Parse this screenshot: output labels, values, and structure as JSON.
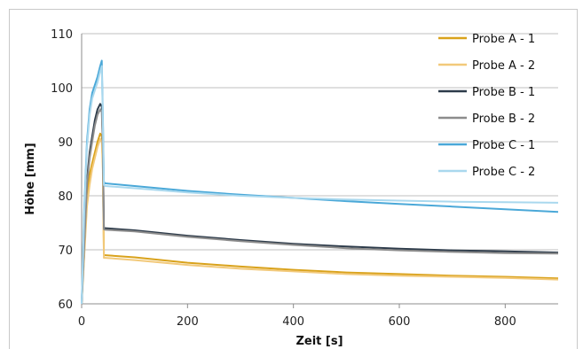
{
  "chart_data": {
    "type": "line",
    "title": "",
    "xlabel": "Zeit [s]",
    "ylabel": "Höhe [mm]",
    "xlim": [
      0,
      900
    ],
    "ylim": [
      60,
      110
    ],
    "xticks": [
      0,
      200,
      400,
      600,
      800
    ],
    "yticks": [
      60,
      70,
      80,
      90,
      100,
      110
    ],
    "grid": "horizontal",
    "legend_position": "right",
    "series": [
      {
        "name": "Probe A - 1",
        "color": "#d9a21b",
        "x": [
          0,
          5,
          10,
          15,
          20,
          25,
          30,
          35,
          38,
          40,
          42,
          45,
          100,
          200,
          300,
          400,
          500,
          600,
          700,
          800,
          900
        ],
        "y": [
          60,
          70,
          80,
          84,
          86,
          88,
          90,
          91.5,
          91,
          86,
          69,
          69,
          68.6,
          67.6,
          66.9,
          66.3,
          65.8,
          65.5,
          65.2,
          65,
          64.7
        ]
      },
      {
        "name": "Probe A - 2",
        "color": "#f2c97a",
        "x": [
          0,
          5,
          10,
          15,
          20,
          25,
          30,
          35,
          38,
          40,
          42,
          45,
          100,
          200,
          300,
          400,
          500,
          600,
          700,
          800,
          900
        ],
        "y": [
          60,
          69,
          78,
          82,
          85,
          87,
          89,
          90.5,
          90,
          85,
          68.5,
          68.5,
          68.1,
          67.2,
          66.5,
          66,
          65.5,
          65.2,
          65,
          64.8,
          64.5
        ]
      },
      {
        "name": "Probe B - 1",
        "color": "#2d3b4a",
        "x": [
          0,
          5,
          10,
          15,
          20,
          25,
          30,
          35,
          38,
          40,
          42,
          45,
          100,
          200,
          300,
          400,
          500,
          600,
          700,
          800,
          900
        ],
        "y": [
          60,
          72,
          83,
          88,
          91,
          94,
          96,
          97,
          96.5,
          90,
          74,
          74,
          73.6,
          72.6,
          71.8,
          71.1,
          70.6,
          70.2,
          69.9,
          69.7,
          69.5
        ]
      },
      {
        "name": "Probe B - 2",
        "color": "#8c8c8c",
        "x": [
          0,
          5,
          10,
          15,
          20,
          25,
          30,
          35,
          38,
          40,
          42,
          45,
          100,
          200,
          300,
          400,
          500,
          600,
          700,
          800,
          900
        ],
        "y": [
          60,
          71,
          82,
          87,
          90,
          93,
          95,
          96,
          95.5,
          89,
          73.8,
          73.7,
          73.4,
          72.4,
          71.6,
          70.9,
          70.3,
          69.9,
          69.6,
          69.4,
          69.3
        ]
      },
      {
        "name": "Probe C - 1",
        "color": "#4aa8d8",
        "x": [
          0,
          5,
          10,
          15,
          20,
          25,
          30,
          35,
          38,
          40,
          42,
          45,
          100,
          200,
          300,
          400,
          500,
          600,
          700,
          800,
          900
        ],
        "y": [
          60,
          78,
          90,
          96,
          99,
          100.5,
          102,
          104,
          105,
          95,
          82.5,
          82.3,
          81.8,
          80.9,
          80.2,
          79.6,
          79,
          78.5,
          78,
          77.5,
          77
        ]
      },
      {
        "name": "Probe C - 2",
        "color": "#a9d8ee",
        "x": [
          0,
          5,
          10,
          15,
          20,
          25,
          30,
          35,
          38,
          40,
          42,
          45,
          100,
          200,
          300,
          400,
          500,
          600,
          700,
          800,
          900
        ],
        "y": [
          60,
          77,
          89,
          95,
          98,
          99.5,
          101,
          103,
          104,
          94,
          82,
          81.8,
          81.4,
          80.6,
          80,
          79.6,
          79.3,
          79.1,
          78.9,
          78.8,
          78.7
        ]
      }
    ]
  }
}
